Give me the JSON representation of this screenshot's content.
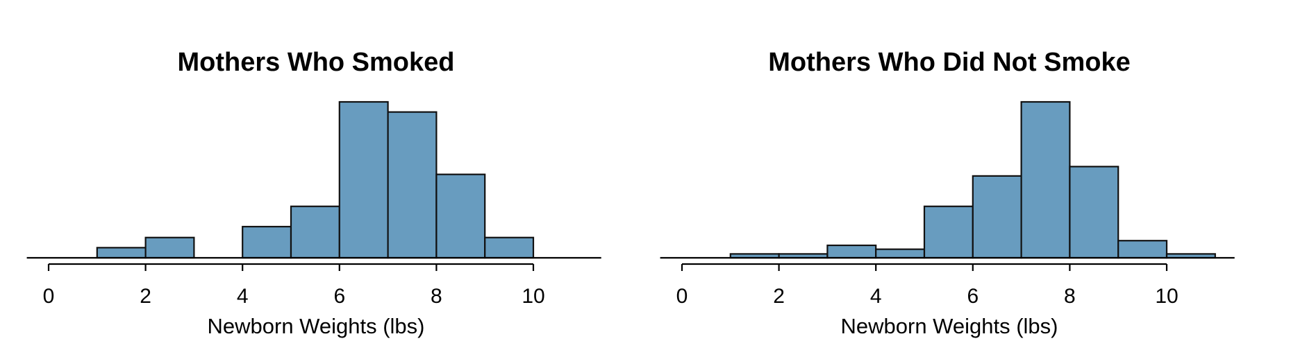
{
  "colors": {
    "bar_fill": "#689cbf",
    "bar_stroke": "#111111"
  },
  "chart_data": [
    {
      "type": "bar",
      "title": "Mothers Who Smoked",
      "xlabel": "Newborn Weights (lbs)",
      "ylabel": "",
      "xlim": [
        -0.45,
        11.4
      ],
      "ylim": [
        0,
        1
      ],
      "xticks": [
        0,
        2,
        4,
        6,
        8,
        10
      ],
      "bins": [
        {
          "x0": 1,
          "x1": 2,
          "value": 0.065
        },
        {
          "x0": 2,
          "x1": 3,
          "value": 0.13
        },
        {
          "x0": 3,
          "x1": 4,
          "value": 0
        },
        {
          "x0": 4,
          "x1": 5,
          "value": 0.2
        },
        {
          "x0": 5,
          "x1": 6,
          "value": 0.33
        },
        {
          "x0": 6,
          "x1": 7,
          "value": 1.0
        },
        {
          "x0": 7,
          "x1": 8,
          "value": 0.935
        },
        {
          "x0": 8,
          "x1": 9,
          "value": 0.535
        },
        {
          "x0": 9,
          "x1": 10,
          "value": 0.13
        }
      ]
    },
    {
      "type": "bar",
      "title": "Mothers Who Did Not Smoke",
      "xlabel": "Newborn Weights (lbs)",
      "ylabel": "",
      "xlim": [
        -0.45,
        11.4
      ],
      "ylim": [
        0,
        1
      ],
      "xticks": [
        0,
        2,
        4,
        6,
        8,
        10
      ],
      "bins": [
        {
          "x0": 1,
          "x1": 2,
          "value": 0.025
        },
        {
          "x0": 2,
          "x1": 3,
          "value": 0.025
        },
        {
          "x0": 3,
          "x1": 4,
          "value": 0.08
        },
        {
          "x0": 4,
          "x1": 5,
          "value": 0.055
        },
        {
          "x0": 5,
          "x1": 6,
          "value": 0.33
        },
        {
          "x0": 6,
          "x1": 7,
          "value": 0.525
        },
        {
          "x0": 7,
          "x1": 8,
          "value": 1.0
        },
        {
          "x0": 8,
          "x1": 9,
          "value": 0.585
        },
        {
          "x0": 9,
          "x1": 10,
          "value": 0.11
        },
        {
          "x0": 10,
          "x1": 11,
          "value": 0.025
        }
      ]
    }
  ]
}
